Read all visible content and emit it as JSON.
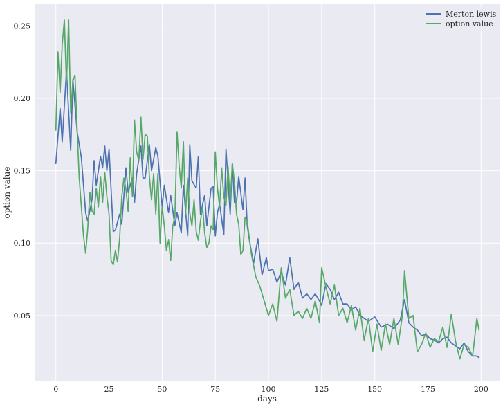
{
  "chart_data": {
    "type": "line",
    "xlabel": "days",
    "ylabel": "option value",
    "xlim": [
      -10,
      209
    ],
    "ylim": [
      0.005,
      0.265
    ],
    "xticks": [
      0,
      25,
      50,
      75,
      100,
      125,
      150,
      175,
      200
    ],
    "xtick_labels": [
      "0",
      "25",
      "50",
      "75",
      "100",
      "125",
      "150",
      "175",
      "200"
    ],
    "yticks": [
      0.05,
      0.1,
      0.15,
      0.2,
      0.25
    ],
    "ytick_labels": [
      "0.05",
      "0.10",
      "0.15",
      "0.20",
      "0.25"
    ],
    "grid": true,
    "legend_position": "top-right",
    "series": [
      {
        "name": "Merton lewis",
        "color": "#4c72b0",
        "x": [
          0,
          2,
          3,
          5,
          7,
          8,
          10,
          12,
          14,
          15,
          17,
          18,
          19,
          21,
          22,
          23,
          24,
          25,
          27,
          28,
          30,
          31,
          33,
          34,
          36,
          37,
          38,
          40,
          41,
          42,
          44,
          45,
          47,
          48,
          50,
          51,
          53,
          54,
          56,
          57,
          59,
          60,
          62,
          63,
          64,
          66,
          67,
          68,
          70,
          71,
          73,
          74,
          75,
          76,
          77,
          79,
          80,
          82,
          83,
          84,
          85,
          86,
          88,
          89,
          90,
          91,
          93,
          95,
          97,
          99,
          100,
          102,
          104,
          106,
          108,
          110,
          112,
          114,
          116,
          118,
          120,
          122,
          124,
          125,
          127,
          129,
          131,
          133,
          135,
          137,
          139,
          141,
          143,
          145,
          147,
          150,
          153,
          156,
          159,
          162,
          164,
          166,
          168,
          170,
          172,
          174,
          176,
          178,
          180,
          182,
          184,
          186,
          188,
          190,
          192,
          194,
          196,
          198,
          199
        ],
        "y": [
          0.155,
          0.193,
          0.17,
          0.219,
          0.164,
          0.213,
          0.177,
          0.159,
          0.121,
          0.115,
          0.13,
          0.157,
          0.14,
          0.16,
          0.152,
          0.167,
          0.15,
          0.165,
          0.108,
          0.109,
          0.12,
          0.113,
          0.152,
          0.135,
          0.145,
          0.128,
          0.148,
          0.167,
          0.145,
          0.145,
          0.168,
          0.15,
          0.166,
          0.16,
          0.125,
          0.14,
          0.121,
          0.133,
          0.112,
          0.121,
          0.107,
          0.14,
          0.105,
          0.168,
          0.143,
          0.138,
          0.16,
          0.12,
          0.133,
          0.112,
          0.138,
          0.139,
          0.105,
          0.121,
          0.127,
          0.106,
          0.165,
          0.12,
          0.155,
          0.128,
          0.128,
          0.146,
          0.123,
          0.145,
          0.112,
          0.102,
          0.086,
          0.103,
          0.078,
          0.09,
          0.081,
          0.082,
          0.073,
          0.08,
          0.071,
          0.09,
          0.068,
          0.073,
          0.062,
          0.065,
          0.061,
          0.065,
          0.06,
          0.057,
          0.072,
          0.068,
          0.061,
          0.066,
          0.058,
          0.058,
          0.054,
          0.056,
          0.05,
          0.048,
          0.046,
          0.049,
          0.042,
          0.044,
          0.041,
          0.047,
          0.061,
          0.045,
          0.042,
          0.04,
          0.036,
          0.037,
          0.034,
          0.033,
          0.031,
          0.034,
          0.035,
          0.031,
          0.029,
          0.027,
          0.031,
          0.025,
          0.022,
          0.022,
          0.021
        ]
      },
      {
        "name": "option value",
        "color": "#55a868",
        "x": [
          0,
          1,
          2,
          3,
          4,
          5,
          6,
          7,
          8,
          9,
          10,
          11,
          12,
          13,
          14,
          15,
          16,
          17,
          18,
          19,
          20,
          21,
          22,
          23,
          24,
          25,
          26,
          27,
          28,
          29,
          30,
          31,
          32,
          33,
          34,
          35,
          36,
          37,
          38,
          39,
          40,
          41,
          42,
          43,
          44,
          45,
          46,
          47,
          48,
          49,
          50,
          51,
          52,
          53,
          54,
          55,
          56,
          57,
          58,
          59,
          60,
          61,
          62,
          63,
          64,
          65,
          66,
          67,
          68,
          69,
          70,
          71,
          72,
          73,
          74,
          75,
          76,
          77,
          78,
          79,
          80,
          81,
          82,
          83,
          84,
          85,
          86,
          87,
          88,
          89,
          90,
          92,
          94,
          96,
          98,
          100,
          102,
          104,
          106,
          108,
          110,
          112,
          114,
          116,
          118,
          120,
          122,
          124,
          125,
          127,
          129,
          131,
          133,
          135,
          137,
          139,
          141,
          143,
          145,
          147,
          149,
          151,
          153,
          155,
          157,
          159,
          161,
          163,
          164,
          166,
          168,
          170,
          172,
          174,
          176,
          178,
          180,
          182,
          184,
          186,
          188,
          190,
          192,
          194,
          196,
          198,
          199
        ],
        "y": [
          0.178,
          0.232,
          0.204,
          0.237,
          0.254,
          0.21,
          0.254,
          0.19,
          0.212,
          0.216,
          0.178,
          0.145,
          0.125,
          0.105,
          0.093,
          0.11,
          0.135,
          0.122,
          0.12,
          0.138,
          0.125,
          0.146,
          0.128,
          0.149,
          0.132,
          0.12,
          0.088,
          0.085,
          0.095,
          0.087,
          0.103,
          0.132,
          0.145,
          0.137,
          0.122,
          0.159,
          0.132,
          0.185,
          0.163,
          0.157,
          0.187,
          0.158,
          0.175,
          0.174,
          0.146,
          0.13,
          0.148,
          0.12,
          0.148,
          0.1,
          0.125,
          0.112,
          0.095,
          0.102,
          0.088,
          0.112,
          0.118,
          0.177,
          0.153,
          0.138,
          0.17,
          0.12,
          0.145,
          0.121,
          0.112,
          0.13,
          0.108,
          0.102,
          0.115,
          0.125,
          0.107,
          0.097,
          0.1,
          0.112,
          0.109,
          0.163,
          0.138,
          0.125,
          0.152,
          0.132,
          0.126,
          0.153,
          0.128,
          0.155,
          0.142,
          0.12,
          0.113,
          0.092,
          0.095,
          0.118,
          0.115,
          0.092,
          0.077,
          0.07,
          0.06,
          0.05,
          0.058,
          0.046,
          0.083,
          0.062,
          0.068,
          0.05,
          0.053,
          0.048,
          0.055,
          0.048,
          0.06,
          0.045,
          0.083,
          0.07,
          0.058,
          0.071,
          0.05,
          0.055,
          0.045,
          0.057,
          0.04,
          0.055,
          0.033,
          0.048,
          0.025,
          0.044,
          0.026,
          0.044,
          0.03,
          0.048,
          0.03,
          0.05,
          0.081,
          0.048,
          0.05,
          0.025,
          0.03,
          0.038,
          0.028,
          0.034,
          0.032,
          0.042,
          0.028,
          0.051,
          0.032,
          0.02,
          0.03,
          0.028,
          0.022,
          0.048,
          0.04
        ]
      }
    ]
  }
}
